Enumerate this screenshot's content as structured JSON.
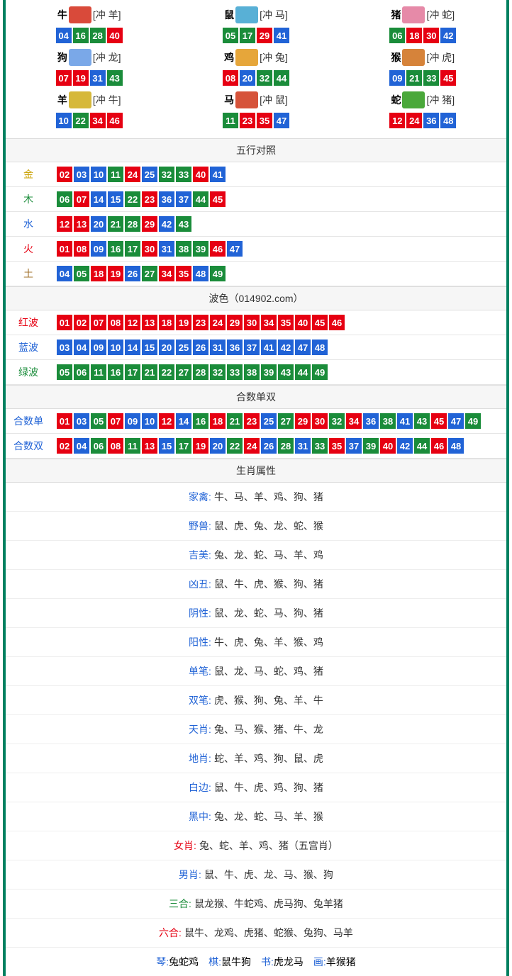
{
  "ballColors": {
    "red": [
      "01",
      "02",
      "07",
      "08",
      "12",
      "13",
      "18",
      "19",
      "23",
      "24",
      "29",
      "30",
      "34",
      "35",
      "40",
      "45",
      "46"
    ],
    "blue": [
      "03",
      "04",
      "09",
      "10",
      "14",
      "15",
      "20",
      "25",
      "26",
      "31",
      "36",
      "37",
      "41",
      "42",
      "47",
      "48"
    ],
    "green": [
      "05",
      "06",
      "11",
      "16",
      "17",
      "21",
      "22",
      "27",
      "28",
      "32",
      "33",
      "38",
      "39",
      "43",
      "44",
      "49"
    ]
  },
  "zodiac": [
    {
      "name": "牛",
      "conflict": "[冲 羊]",
      "img_bg": "#d94a3a",
      "nums": [
        "04",
        "16",
        "28",
        "40"
      ]
    },
    {
      "name": "鼠",
      "conflict": "[冲 马]",
      "img_bg": "#58b0d6",
      "nums": [
        "05",
        "17",
        "29",
        "41"
      ]
    },
    {
      "name": "猪",
      "conflict": "[冲 蛇]",
      "img_bg": "#e68aa8",
      "nums": [
        "06",
        "18",
        "30",
        "42"
      ]
    },
    {
      "name": "狗",
      "conflict": "[冲 龙]",
      "img_bg": "#7aa8e8",
      "nums": [
        "07",
        "19",
        "31",
        "43"
      ]
    },
    {
      "name": "鸡",
      "conflict": "[冲 兔]",
      "img_bg": "#e6a63a",
      "nums": [
        "08",
        "20",
        "32",
        "44"
      ]
    },
    {
      "name": "猴",
      "conflict": "[冲 虎]",
      "img_bg": "#d6833a",
      "nums": [
        "09",
        "21",
        "33",
        "45"
      ]
    },
    {
      "name": "羊",
      "conflict": "[冲 牛]",
      "img_bg": "#d6b83a",
      "nums": [
        "10",
        "22",
        "34",
        "46"
      ]
    },
    {
      "name": "马",
      "conflict": "[冲 鼠]",
      "img_bg": "#d6533a",
      "nums": [
        "11",
        "23",
        "35",
        "47"
      ]
    },
    {
      "name": "蛇",
      "conflict": "[冲 猪]",
      "img_bg": "#4aa83a",
      "nums": [
        "12",
        "24",
        "36",
        "48"
      ]
    }
  ],
  "sections": {
    "wuxing_title": "五行对照",
    "bose_title": "波色（014902.com）",
    "heshu_title": "合数单双",
    "shengxiao_title": "生肖属性"
  },
  "wuxing": [
    {
      "label": "金",
      "cls": "col-gold",
      "nums": [
        "02",
        "03",
        "10",
        "11",
        "24",
        "25",
        "32",
        "33",
        "40",
        "41"
      ]
    },
    {
      "label": "木",
      "cls": "col-wood",
      "nums": [
        "06",
        "07",
        "14",
        "15",
        "22",
        "23",
        "36",
        "37",
        "44",
        "45"
      ]
    },
    {
      "label": "水",
      "cls": "col-water",
      "nums": [
        "12",
        "13",
        "20",
        "21",
        "28",
        "29",
        "42",
        "43"
      ]
    },
    {
      "label": "火",
      "cls": "col-fire",
      "nums": [
        "01",
        "08",
        "09",
        "16",
        "17",
        "30",
        "31",
        "38",
        "39",
        "46",
        "47"
      ]
    },
    {
      "label": "土",
      "cls": "col-earth",
      "nums": [
        "04",
        "05",
        "18",
        "19",
        "26",
        "27",
        "34",
        "35",
        "48",
        "49"
      ]
    }
  ],
  "bose": [
    {
      "label": "红波",
      "cls": "col-red-t",
      "nums": [
        "01",
        "02",
        "07",
        "08",
        "12",
        "13",
        "18",
        "19",
        "23",
        "24",
        "29",
        "30",
        "34",
        "35",
        "40",
        "45",
        "46"
      ]
    },
    {
      "label": "蓝波",
      "cls": "col-blue-t",
      "nums": [
        "03",
        "04",
        "09",
        "10",
        "14",
        "15",
        "20",
        "25",
        "26",
        "31",
        "36",
        "37",
        "41",
        "42",
        "47",
        "48"
      ]
    },
    {
      "label": "绿波",
      "cls": "col-green-t",
      "nums": [
        "05",
        "06",
        "11",
        "16",
        "17",
        "21",
        "22",
        "27",
        "28",
        "32",
        "33",
        "38",
        "39",
        "43",
        "44",
        "49"
      ]
    }
  ],
  "heshu": [
    {
      "label": "合数单",
      "cls": "col-blue-t",
      "nums": [
        "01",
        "03",
        "05",
        "07",
        "09",
        "10",
        "12",
        "14",
        "16",
        "18",
        "21",
        "23",
        "25",
        "27",
        "29",
        "30",
        "32",
        "34",
        "36",
        "38",
        "41",
        "43",
        "45",
        "47",
        "49"
      ]
    },
    {
      "label": "合数双",
      "cls": "col-blue-t",
      "nums": [
        "02",
        "04",
        "06",
        "08",
        "11",
        "13",
        "15",
        "17",
        "19",
        "20",
        "22",
        "24",
        "26",
        "28",
        "31",
        "33",
        "35",
        "37",
        "39",
        "40",
        "42",
        "44",
        "46",
        "48"
      ]
    }
  ],
  "attrs": [
    {
      "label": "家禽:",
      "cls": "col-blue-t",
      "val": "牛、马、羊、鸡、狗、猪"
    },
    {
      "label": "野兽:",
      "cls": "col-blue-t",
      "val": "鼠、虎、兔、龙、蛇、猴"
    },
    {
      "label": "吉美:",
      "cls": "col-blue-t",
      "val": "兔、龙、蛇、马、羊、鸡"
    },
    {
      "label": "凶丑:",
      "cls": "col-blue-t",
      "val": "鼠、牛、虎、猴、狗、猪"
    },
    {
      "label": "阴性:",
      "cls": "col-blue-t",
      "val": "鼠、龙、蛇、马、狗、猪"
    },
    {
      "label": "阳性:",
      "cls": "col-blue-t",
      "val": "牛、虎、兔、羊、猴、鸡"
    },
    {
      "label": "单笔:",
      "cls": "col-blue-t",
      "val": "鼠、龙、马、蛇、鸡、猪"
    },
    {
      "label": "双笔:",
      "cls": "col-blue-t",
      "val": "虎、猴、狗、兔、羊、牛"
    },
    {
      "label": "天肖:",
      "cls": "col-blue-t",
      "val": "兔、马、猴、猪、牛、龙"
    },
    {
      "label": "地肖:",
      "cls": "col-blue-t",
      "val": "蛇、羊、鸡、狗、鼠、虎"
    },
    {
      "label": "白边:",
      "cls": "col-blue-t",
      "val": "鼠、牛、虎、鸡、狗、猪"
    },
    {
      "label": "黑中:",
      "cls": "col-blue-t",
      "val": "兔、龙、蛇、马、羊、猴"
    },
    {
      "label": "女肖:",
      "cls": "col-red-t",
      "val": "兔、蛇、羊、鸡、猪（五宫肖）"
    },
    {
      "label": "男肖:",
      "cls": "col-blue-t",
      "val": "鼠、牛、虎、龙、马、猴、狗"
    },
    {
      "label": "三合:",
      "cls": "col-green-t",
      "val": "鼠龙猴、牛蛇鸡、虎马狗、兔羊猪"
    },
    {
      "label": "六合:",
      "cls": "col-red-t",
      "val": "鼠牛、龙鸡、虎猪、蛇猴、兔狗、马羊"
    }
  ],
  "footer": {
    "parts": [
      {
        "label": "琴:",
        "cls": "col-blue-t",
        "val": "兔蛇鸡"
      },
      {
        "label": "棋:",
        "cls": "col-blue-t",
        "val": "鼠牛狗"
      },
      {
        "label": "书:",
        "cls": "col-blue-t",
        "val": "虎龙马"
      },
      {
        "label": "画:",
        "cls": "col-blue-t",
        "val": "羊猴猪"
      }
    ]
  }
}
